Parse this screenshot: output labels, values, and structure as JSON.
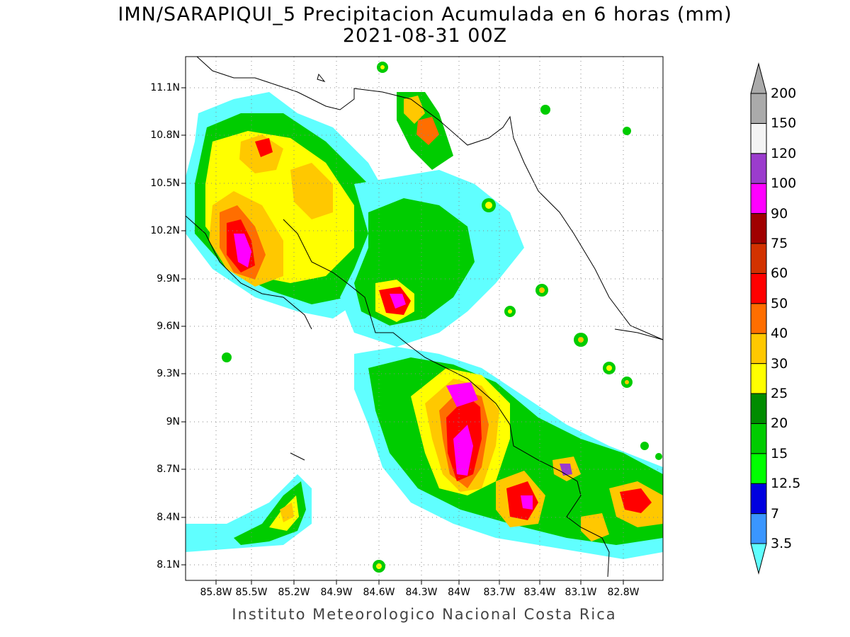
{
  "map": {
    "title_line1": "IMN/SARAPIQUI_5 Precipitacion Acumulada en 6 horas (mm)",
    "title_line2": "2021-08-31 00Z",
    "credit": "Instituto Meteorologico Nacional Costa Rica",
    "lat_ticks": [
      "11.1N",
      "10.8N",
      "10.5N",
      "10.2N",
      "9.9N",
      "9.6N",
      "9.3N",
      "9N",
      "8.7N",
      "8.4N",
      "8.1N"
    ],
    "lon_ticks": [
      "85.8W",
      "85.5W",
      "85.2W",
      "84.9W",
      "84.6W",
      "84.3W",
      "84W",
      "83.7W",
      "83.4W",
      "83.1W",
      "82.8W"
    ]
  },
  "colorbar": {
    "levels": [
      "3.5",
      "7",
      "12.5",
      "15",
      "20",
      "25",
      "30",
      "40",
      "50",
      "60",
      "75",
      "90",
      "100",
      "120",
      "150",
      "200"
    ],
    "colors": [
      "#60ffff",
      "#3a96ff",
      "#0000e0",
      "#00ff00",
      "#00cc00",
      "#008c00",
      "#ffff00",
      "#ffc800",
      "#ff6e00",
      "#ff0000",
      "#d23200",
      "#a00000",
      "#ff00ff",
      "#9b3ccd",
      "#f4f4f4",
      "#aaaaaa"
    ]
  }
}
